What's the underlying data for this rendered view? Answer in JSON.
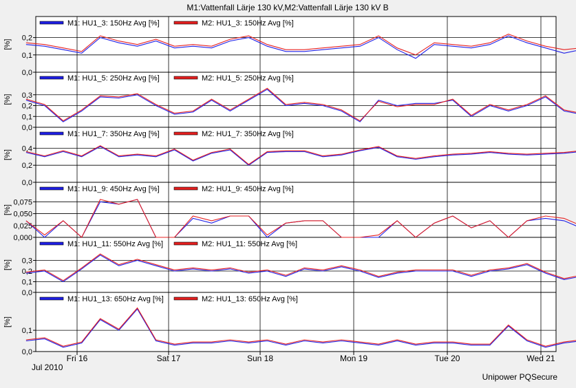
{
  "title": "M1:Vattenfall Lärje 130 kV,M2:Vattenfall Lärje 130 kV B",
  "footer": "Unipower PQSecure",
  "year_label": "Jul 2010",
  "colors": {
    "m1": "#1f1fe6",
    "m2": "#e62020",
    "grid": "#000000",
    "background": "#ffffff",
    "frame": "#f0f0f0"
  },
  "chart_data": {
    "type": "line",
    "x_ticks": [
      "Fri 16",
      "Sat 17",
      "Sun 18",
      "Mon 19",
      "Tue 20",
      "Wed 21"
    ],
    "x_range_days": [
      0.0,
      5.98
    ],
    "panels": [
      {
        "y_axis_label": "[%]",
        "ylim": [
          0,
          0.25
        ],
        "y_ticks": [
          "0,0",
          "0,1",
          "0,2"
        ],
        "y_tick_values": [
          0,
          0.1,
          0.2
        ],
        "series": [
          {
            "name": "M1: HU1_3: 150Hz Avg  [%]",
            "color": "#1f1fe6",
            "x": [
              0,
              0.2,
              0.4,
              0.6,
              0.8,
              1.0,
              1.2,
              1.4,
              1.6,
              1.8,
              2.0,
              2.2,
              2.4,
              2.6,
              2.8,
              3.0,
              3.2,
              3.4,
              3.6,
              3.8,
              4.0,
              4.2,
              4.4,
              4.6,
              4.8,
              5.0,
              5.2,
              5.4,
              5.6,
              5.8,
              5.98
            ],
            "y": [
              0.16,
              0.15,
              0.13,
              0.11,
              0.2,
              0.17,
              0.15,
              0.18,
              0.14,
              0.15,
              0.14,
              0.18,
              0.2,
              0.15,
              0.12,
              0.12,
              0.13,
              0.14,
              0.15,
              0.2,
              0.13,
              0.08,
              0.16,
              0.15,
              0.14,
              0.16,
              0.21,
              0.17,
              0.14,
              0.11,
              0.13
            ]
          },
          {
            "name": "M2: HU1_3: 150Hz Avg  [%]",
            "color": "#e62020",
            "x": [
              0,
              0.2,
              0.4,
              0.6,
              0.8,
              1.0,
              1.2,
              1.4,
              1.6,
              1.8,
              2.0,
              2.2,
              2.4,
              2.6,
              2.8,
              3.0,
              3.2,
              3.4,
              3.6,
              3.8,
              4.0,
              4.2,
              4.4,
              4.6,
              4.8,
              5.0,
              5.2,
              5.4,
              5.6,
              5.8,
              5.98
            ],
            "y": [
              0.17,
              0.16,
              0.14,
              0.12,
              0.21,
              0.18,
              0.16,
              0.19,
              0.15,
              0.16,
              0.15,
              0.19,
              0.21,
              0.16,
              0.13,
              0.13,
              0.14,
              0.15,
              0.16,
              0.21,
              0.14,
              0.1,
              0.17,
              0.16,
              0.15,
              0.17,
              0.22,
              0.18,
              0.15,
              0.13,
              0.14
            ]
          }
        ]
      },
      {
        "y_axis_label": "[%]",
        "ylim": [
          0,
          0.4
        ],
        "y_ticks": [
          "0,0",
          "0,1",
          "0,2",
          "0,3"
        ],
        "y_tick_values": [
          0,
          0.1,
          0.2,
          0.3
        ],
        "series": [
          {
            "name": "M1: HU1_5: 250Hz Avg  [%]",
            "color": "#1f1fe6",
            "x": [
              0,
              0.2,
              0.4,
              0.6,
              0.8,
              1.0,
              1.2,
              1.4,
              1.6,
              1.8,
              2.0,
              2.2,
              2.4,
              2.6,
              2.8,
              3.0,
              3.2,
              3.4,
              3.6,
              3.8,
              4.0,
              4.2,
              4.4,
              4.6,
              4.8,
              5.0,
              5.2,
              5.4,
              5.6,
              5.8,
              5.98
            ],
            "y": [
              0.25,
              0.2,
              0.05,
              0.15,
              0.28,
              0.27,
              0.3,
              0.2,
              0.12,
              0.14,
              0.25,
              0.15,
              0.25,
              0.35,
              0.2,
              0.22,
              0.2,
              0.15,
              0.05,
              0.25,
              0.2,
              0.22,
              0.22,
              0.25,
              0.1,
              0.2,
              0.15,
              0.2,
              0.28,
              0.15,
              0.12
            ]
          },
          {
            "name": "M2: HU1_5: 250Hz Avg  [%]",
            "color": "#e62020",
            "x": [
              0,
              0.2,
              0.4,
              0.6,
              0.8,
              1.0,
              1.2,
              1.4,
              1.6,
              1.8,
              2.0,
              2.2,
              2.4,
              2.6,
              2.8,
              3.0,
              3.2,
              3.4,
              3.6,
              3.8,
              4.0,
              4.2,
              4.4,
              4.6,
              4.8,
              5.0,
              5.2,
              5.4,
              5.6,
              5.8,
              5.98
            ],
            "y": [
              0.26,
              0.21,
              0.06,
              0.16,
              0.29,
              0.28,
              0.31,
              0.21,
              0.13,
              0.15,
              0.26,
              0.16,
              0.26,
              0.36,
              0.21,
              0.23,
              0.21,
              0.16,
              0.06,
              0.24,
              0.19,
              0.21,
              0.21,
              0.26,
              0.11,
              0.21,
              0.16,
              0.21,
              0.29,
              0.16,
              0.13
            ]
          }
        ]
      },
      {
        "y_axis_label": "[%]",
        "ylim": [
          0,
          0.5
        ],
        "y_ticks": [
          "0,0",
          "0,2",
          "0,4"
        ],
        "y_tick_values": [
          0,
          0.2,
          0.4
        ],
        "series": [
          {
            "name": "M1: HU1_7: 350Hz Avg  [%]",
            "color": "#1f1fe6",
            "x": [
              0,
              0.2,
              0.4,
              0.6,
              0.8,
              1.0,
              1.2,
              1.4,
              1.6,
              1.8,
              2.0,
              2.2,
              2.4,
              2.6,
              2.8,
              3.0,
              3.2,
              3.4,
              3.6,
              3.8,
              4.0,
              4.2,
              4.4,
              4.6,
              4.8,
              5.0,
              5.2,
              5.4,
              5.6,
              5.8,
              5.98
            ],
            "y": [
              0.35,
              0.3,
              0.36,
              0.3,
              0.42,
              0.3,
              0.32,
              0.3,
              0.38,
              0.25,
              0.34,
              0.38,
              0.2,
              0.35,
              0.36,
              0.36,
              0.3,
              0.32,
              0.37,
              0.41,
              0.3,
              0.27,
              0.3,
              0.32,
              0.33,
              0.35,
              0.33,
              0.32,
              0.33,
              0.34,
              0.36
            ]
          },
          {
            "name": "M2: HU1_7: 350Hz Avg  [%]",
            "color": "#e62020",
            "x": [
              0,
              0.2,
              0.4,
              0.6,
              0.8,
              1.0,
              1.2,
              1.4,
              1.6,
              1.8,
              2.0,
              2.2,
              2.4,
              2.6,
              2.8,
              3.0,
              3.2,
              3.4,
              3.6,
              3.8,
              4.0,
              4.2,
              4.4,
              4.6,
              4.8,
              5.0,
              5.2,
              5.4,
              5.6,
              5.8,
              5.98
            ],
            "y": [
              0.36,
              0.31,
              0.37,
              0.31,
              0.43,
              0.31,
              0.33,
              0.31,
              0.39,
              0.26,
              0.35,
              0.39,
              0.21,
              0.36,
              0.37,
              0.37,
              0.31,
              0.33,
              0.38,
              0.42,
              0.31,
              0.28,
              0.31,
              0.33,
              0.34,
              0.36,
              0.34,
              0.33,
              0.34,
              0.35,
              0.37
            ]
          }
        ]
      },
      {
        "y_axis_label": "[%]",
        "ylim": [
          0,
          0.09
        ],
        "y_ticks": [
          "0,000",
          "0,025",
          "0,050",
          "0,075"
        ],
        "y_tick_values": [
          0,
          0.025,
          0.05,
          0.075
        ],
        "series": [
          {
            "name": "M1: HU1_9: 450Hz Avg  [%]",
            "color": "#1f1fe6",
            "x": [
              0,
              0.2,
              0.4,
              0.6,
              0.8,
              1.0,
              1.2,
              1.4,
              1.6,
              1.8,
              2.0,
              2.2,
              2.4,
              2.6,
              2.8,
              3.0,
              3.2,
              3.4,
              3.6,
              3.8,
              4.0,
              4.2,
              4.4,
              4.6,
              4.8,
              5.0,
              5.2,
              5.4,
              5.6,
              5.8,
              5.98
            ],
            "y": [
              0.035,
              0,
              0.035,
              0,
              0.075,
              0.07,
              0.08,
              0,
              0,
              0.04,
              0.03,
              0.045,
              0.045,
              0,
              0.03,
              0.035,
              0.035,
              0,
              0,
              0,
              0.035,
              0,
              0.03,
              0.045,
              0.02,
              0.035,
              0,
              0.035,
              0.04,
              0.035,
              0.02
            ]
          },
          {
            "name": "M2: HU1_9: 450Hz Avg  [%]",
            "color": "#e62020",
            "x": [
              0,
              0.2,
              0.4,
              0.6,
              0.8,
              1.0,
              1.2,
              1.4,
              1.6,
              1.8,
              2.0,
              2.2,
              2.4,
              2.6,
              2.8,
              3.0,
              3.2,
              3.4,
              3.6,
              3.8,
              4.0,
              4.2,
              4.4,
              4.6,
              4.8,
              5.0,
              5.2,
              5.4,
              5.6,
              5.8,
              5.98
            ],
            "y": [
              0.035,
              0.005,
              0.035,
              0,
              0.08,
              0.07,
              0.08,
              0,
              0,
              0.045,
              0.035,
              0.045,
              0.045,
              0.005,
              0.03,
              0.035,
              0.035,
              0,
              0,
              0.005,
              0.035,
              0,
              0.03,
              0.045,
              0.02,
              0.035,
              0,
              0.035,
              0.045,
              0.04,
              0.025
            ]
          }
        ]
      },
      {
        "y_axis_label": "[%]",
        "ylim": [
          0,
          0.4
        ],
        "y_ticks": [
          "0,0",
          "0,1",
          "0,2",
          "0,3"
        ],
        "y_tick_values": [
          0,
          0.1,
          0.2,
          0.3
        ],
        "series": [
          {
            "name": "M1: HU1_11: 550Hz Avg  [%]",
            "color": "#1f1fe6",
            "x": [
              0,
              0.2,
              0.4,
              0.6,
              0.8,
              1.0,
              1.2,
              1.4,
              1.6,
              1.8,
              2.0,
              2.2,
              2.4,
              2.6,
              2.8,
              3.0,
              3.2,
              3.4,
              3.6,
              3.8,
              4.0,
              4.2,
              4.4,
              4.6,
              4.8,
              5.0,
              5.2,
              5.4,
              5.6,
              5.8,
              5.98
            ],
            "y": [
              0.18,
              0.2,
              0.1,
              0.22,
              0.35,
              0.25,
              0.3,
              0.25,
              0.2,
              0.22,
              0.2,
              0.22,
              0.18,
              0.2,
              0.15,
              0.22,
              0.2,
              0.24,
              0.2,
              0.14,
              0.18,
              0.2,
              0.2,
              0.2,
              0.15,
              0.2,
              0.22,
              0.26,
              0.18,
              0.12,
              0.15
            ]
          },
          {
            "name": "M2: HU1_11: 550Hz Avg  [%]",
            "color": "#e62020",
            "x": [
              0,
              0.2,
              0.4,
              0.6,
              0.8,
              1.0,
              1.2,
              1.4,
              1.6,
              1.8,
              2.0,
              2.2,
              2.4,
              2.6,
              2.8,
              3.0,
              3.2,
              3.4,
              3.6,
              3.8,
              4.0,
              4.2,
              4.4,
              4.6,
              4.8,
              5.0,
              5.2,
              5.4,
              5.6,
              5.8,
              5.98
            ],
            "y": [
              0.19,
              0.21,
              0.11,
              0.23,
              0.36,
              0.26,
              0.31,
              0.26,
              0.21,
              0.23,
              0.21,
              0.23,
              0.19,
              0.21,
              0.16,
              0.23,
              0.21,
              0.25,
              0.21,
              0.15,
              0.19,
              0.21,
              0.21,
              0.21,
              0.16,
              0.21,
              0.23,
              0.27,
              0.19,
              0.13,
              0.16
            ]
          }
        ]
      },
      {
        "y_axis_label": "[%]",
        "ylim": [
          0,
          0.22
        ],
        "y_ticks": [
          "0,0",
          "0,1"
        ],
        "y_tick_values": [
          0,
          0.1
        ],
        "series": [
          {
            "name": "M1: HU1_13: 650Hz Avg  [%]",
            "color": "#1f1fe6",
            "x": [
              0,
              0.2,
              0.4,
              0.6,
              0.8,
              1.0,
              1.2,
              1.4,
              1.6,
              1.8,
              2.0,
              2.2,
              2.4,
              2.6,
              2.8,
              3.0,
              3.2,
              3.4,
              3.6,
              3.8,
              4.0,
              4.2,
              4.4,
              4.6,
              4.8,
              5.0,
              5.2,
              5.4,
              5.6,
              5.8,
              5.98
            ],
            "y": [
              0.05,
              0.06,
              0.02,
              0.04,
              0.15,
              0.1,
              0.2,
              0.05,
              0.03,
              0.04,
              0.04,
              0.05,
              0.04,
              0.05,
              0.03,
              0.05,
              0.04,
              0.05,
              0.04,
              0.03,
              0.05,
              0.03,
              0.04,
              0.04,
              0.03,
              0.03,
              0.12,
              0.05,
              0.02,
              0.04,
              0.05
            ]
          },
          {
            "name": "M2: HU1_13: 650Hz Avg  [%]",
            "color": "#e62020",
            "x": [
              0,
              0.2,
              0.4,
              0.6,
              0.8,
              1.0,
              1.2,
              1.4,
              1.6,
              1.8,
              2.0,
              2.2,
              2.4,
              2.6,
              2.8,
              3.0,
              3.2,
              3.4,
              3.6,
              3.8,
              4.0,
              4.2,
              4.4,
              4.6,
              4.8,
              5.0,
              5.2,
              5.4,
              5.6,
              5.8,
              5.98
            ],
            "y": [
              0.055,
              0.065,
              0.025,
              0.045,
              0.155,
              0.105,
              0.205,
              0.055,
              0.035,
              0.045,
              0.045,
              0.055,
              0.045,
              0.055,
              0.035,
              0.055,
              0.045,
              0.055,
              0.045,
              0.035,
              0.055,
              0.035,
              0.045,
              0.045,
              0.035,
              0.035,
              0.125,
              0.055,
              0.025,
              0.045,
              0.055
            ]
          }
        ]
      }
    ]
  }
}
